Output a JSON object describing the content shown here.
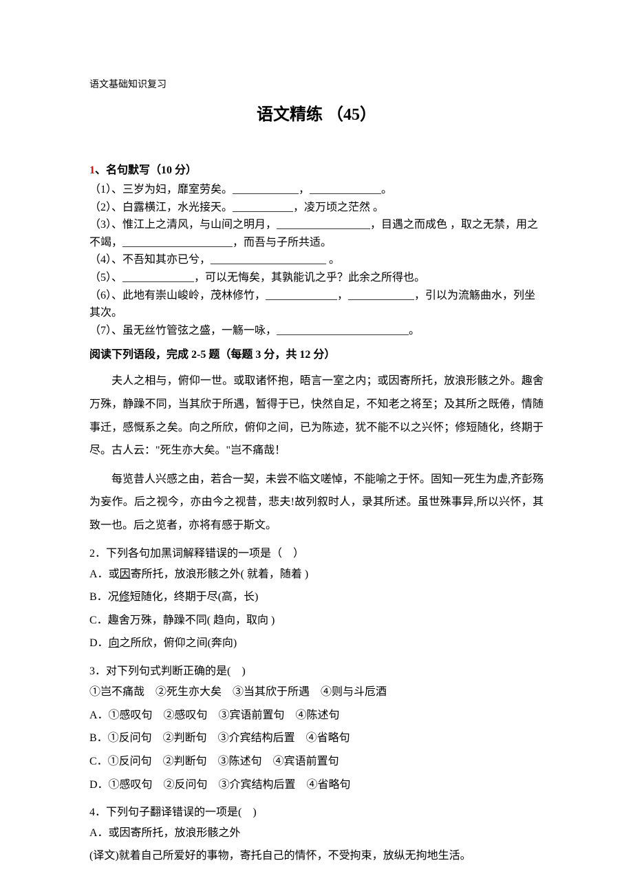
{
  "header_note": "语文基础知识复习",
  "title": "语文精练 （45）",
  "section1": {
    "num": "1",
    "heading": "、名句默写（10 分）",
    "items": [
      "（1）、三岁为妇，靡室劳矣。____________，_____________。",
      "（2）、白露横江，水光接天。___________，凌万顷之茫然 。",
      "（3）、惟江上之清风，与山间之明月，_________________，目遇之而成色 ，取之无禁，用之不竭，____________________，而吾与子所共适。",
      "（4）、不吾知其亦已兮，_____________________ 。",
      "（5）、_____________，可以无悔矣，其孰能讥之乎？此余之所得也。",
      "（6）、此地有崇山峻岭，茂林修竹，_____________，____________，引以为流觞曲水，列坐其次。",
      "（7）、虽无丝竹管弦之盛，一觞一咏，________________________。"
    ]
  },
  "instruction": "阅读下列语段，完成 2-5 题（每题 3 分，共 12 分）",
  "passage1": "夫人之相与，俯仰一世。或取诸怀抱，晤言一室之内；或因寄所托，放浪形骸之外。趣舍万殊，静躁不同，当其欣于所遇，暂得于已，快然自足，不知老之将至；及其所之既倦，情随事迁，感慨系之矣。向之所欣，俯仰之间，已为陈迹，犹不能不以之兴怀；修短随化，终期于尽。古人云：\"死生亦大矣。\"岂不痛哉！",
  "passage2": "每览昔人兴感之由，若合一契，未尝不临文嗟悼，不能喻之于怀。固知一死生为虚,齐彭殇为妄作。后之视今，亦由今之视昔，悲夫!故列叙时人，录其所述。虽世殊事异,所以兴怀，其致一也。后之览者，亦将有感于斯文。",
  "q2": {
    "stem": "2．下列各句加黑词解释错误的一项是（　）",
    "options": [
      {
        "label": "A．",
        "pre": "或",
        "ul": "因",
        "post": "寄所托，放浪形骸之外( 就着，随着 )"
      },
      {
        "label": "B．",
        "pre": "况",
        "ul": "修",
        "post": "短随化，终期于尽(高，长)"
      },
      {
        "label": "C．",
        "pre": "",
        "ul": "",
        "post": "趣舍万殊，静躁不同( 趋向，取向 )"
      },
      {
        "label": "D．",
        "pre": "",
        "ul": "向",
        "post": "之所欣，俯仰之间(奔向)"
      }
    ]
  },
  "q3": {
    "stem": "3．对下列句式判断正确的是(　)",
    "examples": "①岂不痛哉　②死生亦大矣　③当其欣于所遇　④则与斗卮酒",
    "options": [
      "A．①感叹句　②感叹句　③宾语前置句　④陈述句",
      "B．①反问句　②判断句　③介宾结构后置　④省略句",
      "C．①反问句　②判断句　③陈述句　④宾语前置句",
      "D．①感叹句　②反问句　③介宾结构后置　④省略句"
    ]
  },
  "q4": {
    "stem": "4．下列句子翻译错误的一项是(　)",
    "opt_a": "A．或因寄所托，放浪形骸之外",
    "translation": "(译文)就着自己所爱好的事物，寄托自己的情怀，不受拘束，放纵无拘地生活。"
  }
}
